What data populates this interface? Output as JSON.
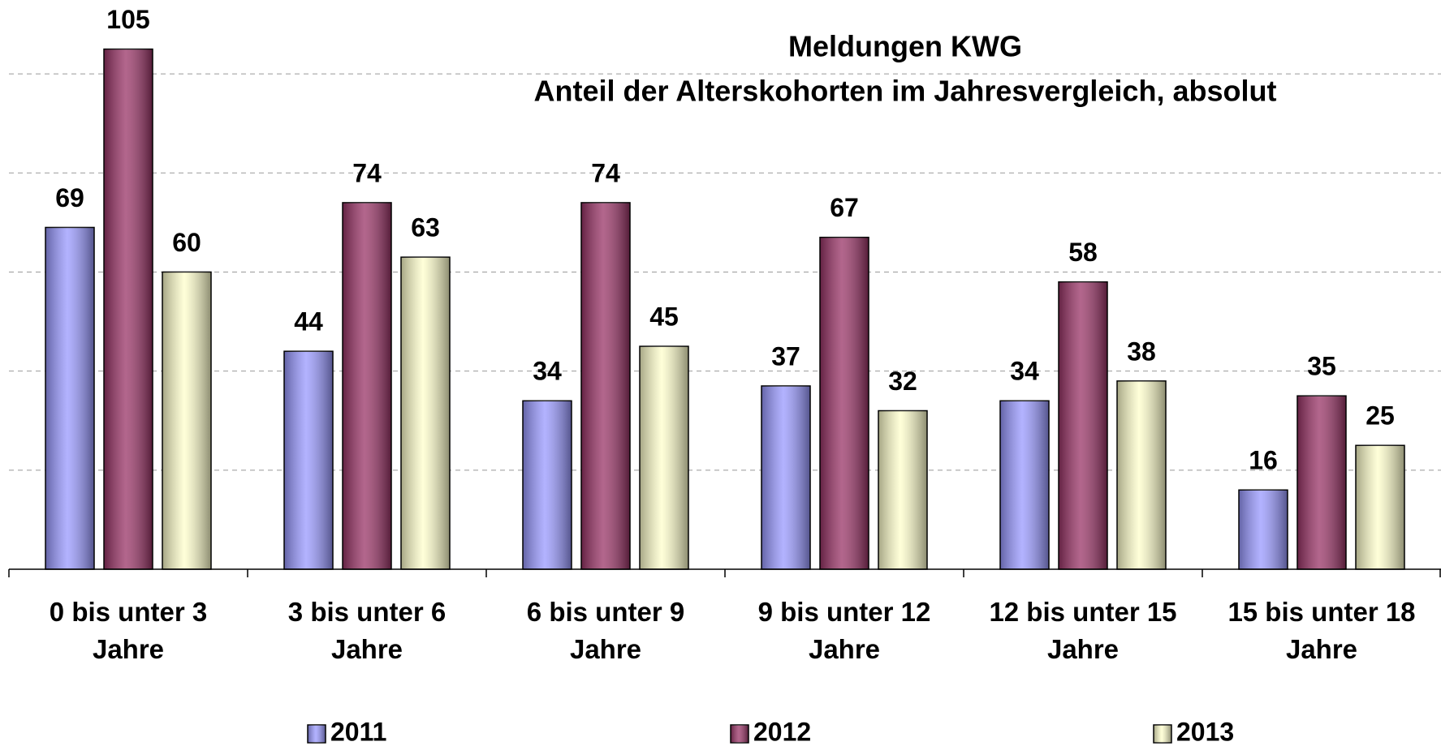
{
  "chart_data": {
    "type": "bar",
    "title": "Meldungen KWG",
    "subtitle": "Anteil der Alterskohorten im Jahresvergleich, absolut",
    "categories": [
      "0 bis unter 3 Jahre",
      "3 bis unter 6 Jahre",
      "6 bis unter 9 Jahre",
      "9 bis unter 12 Jahre",
      "12 bis unter 15 Jahre",
      "15 bis unter 18 Jahre"
    ],
    "series": [
      {
        "name": "2011",
        "color": "#9999ff",
        "values": [
          69,
          44,
          34,
          37,
          34,
          16
        ]
      },
      {
        "name": "2012",
        "color": "#993366",
        "values": [
          105,
          74,
          74,
          67,
          58,
          35
        ]
      },
      {
        "name": "2013",
        "color": "#ffffcc",
        "values": [
          60,
          63,
          45,
          32,
          38,
          25
        ]
      }
    ],
    "ylim": [
      0,
      110
    ],
    "yticks": [
      0,
      20,
      40,
      60,
      80,
      100
    ],
    "grid": true,
    "legend": "bottom"
  }
}
